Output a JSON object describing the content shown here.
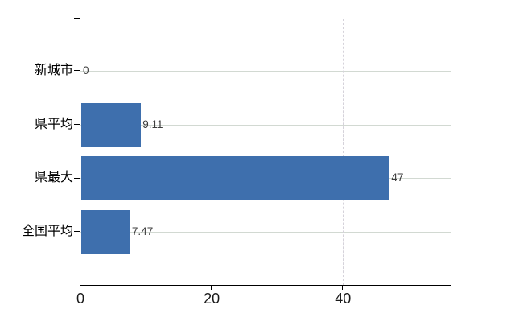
{
  "chart_data": {
    "type": "bar",
    "orientation": "horizontal",
    "title": "",
    "categories": [
      "新城市",
      "県平均",
      "県最大",
      "全国平均"
    ],
    "values": [
      0,
      9.11,
      47,
      7.47
    ],
    "value_labels": [
      "0",
      "9.11",
      "47",
      "7.47"
    ],
    "xlabel": "",
    "ylabel": "",
    "xlim": [
      0,
      56.4
    ],
    "x_ticks": [
      0,
      20,
      40
    ],
    "x_tick_labels": [
      "0",
      "20",
      "40"
    ],
    "grid": true,
    "legend": false,
    "colors": {
      "bar": "#3E6FAD",
      "axis": "#000000",
      "grid_horizontal": "#d2d9d2",
      "grid_vertical": "#d5d2da",
      "plot_top_border": "#cfcfcf",
      "value_label": "#3d3d3d",
      "tick_label": "#1a1a1a",
      "background": "#ffffff"
    }
  }
}
